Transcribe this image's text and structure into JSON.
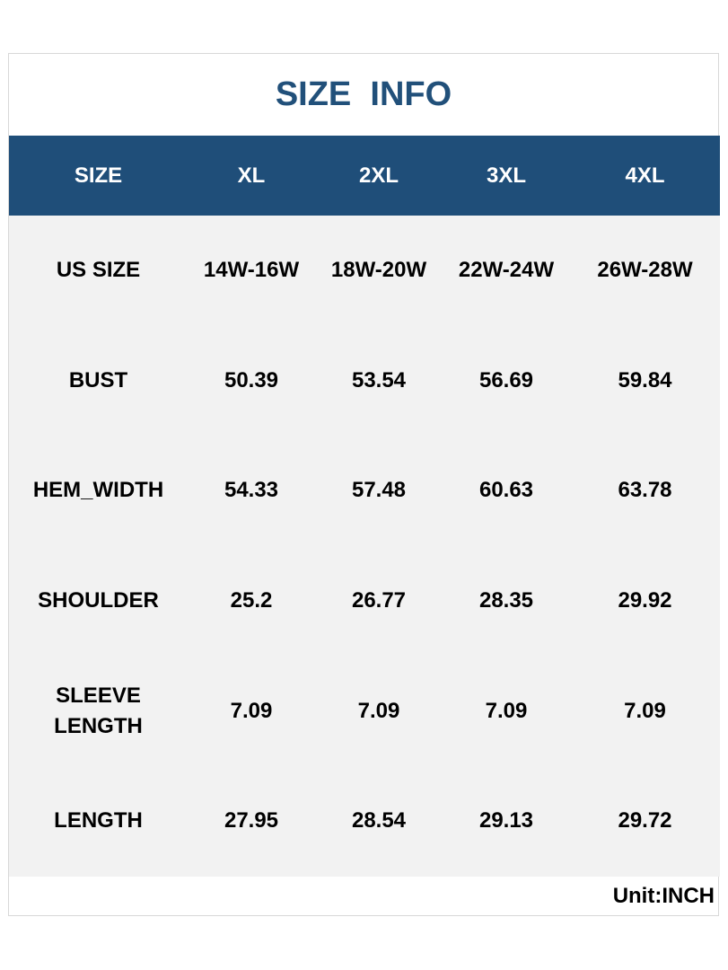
{
  "header": {
    "title": "SIZE  INFO"
  },
  "table": {
    "columns": [
      "SIZE",
      "XL",
      "2XL",
      "3XL",
      "4XL"
    ],
    "rows": [
      [
        "US SIZE",
        "14W-16W",
        "18W-20W",
        "22W-24W",
        "26W-28W"
      ],
      [
        "BUST",
        50.39,
        53.54,
        56.69,
        59.84
      ],
      [
        "HEM_WIDTH",
        54.33,
        57.48,
        60.63,
        63.78
      ],
      [
        "SHOULDER",
        25.2,
        26.77,
        28.35,
        29.92
      ],
      [
        "SLEEVE LENGTH",
        7.09,
        7.09,
        7.09,
        7.09
      ],
      [
        "LENGTH",
        27.95,
        28.54,
        29.13,
        29.72
      ]
    ]
  },
  "footer": {
    "unit": "Unit:INCH"
  }
}
